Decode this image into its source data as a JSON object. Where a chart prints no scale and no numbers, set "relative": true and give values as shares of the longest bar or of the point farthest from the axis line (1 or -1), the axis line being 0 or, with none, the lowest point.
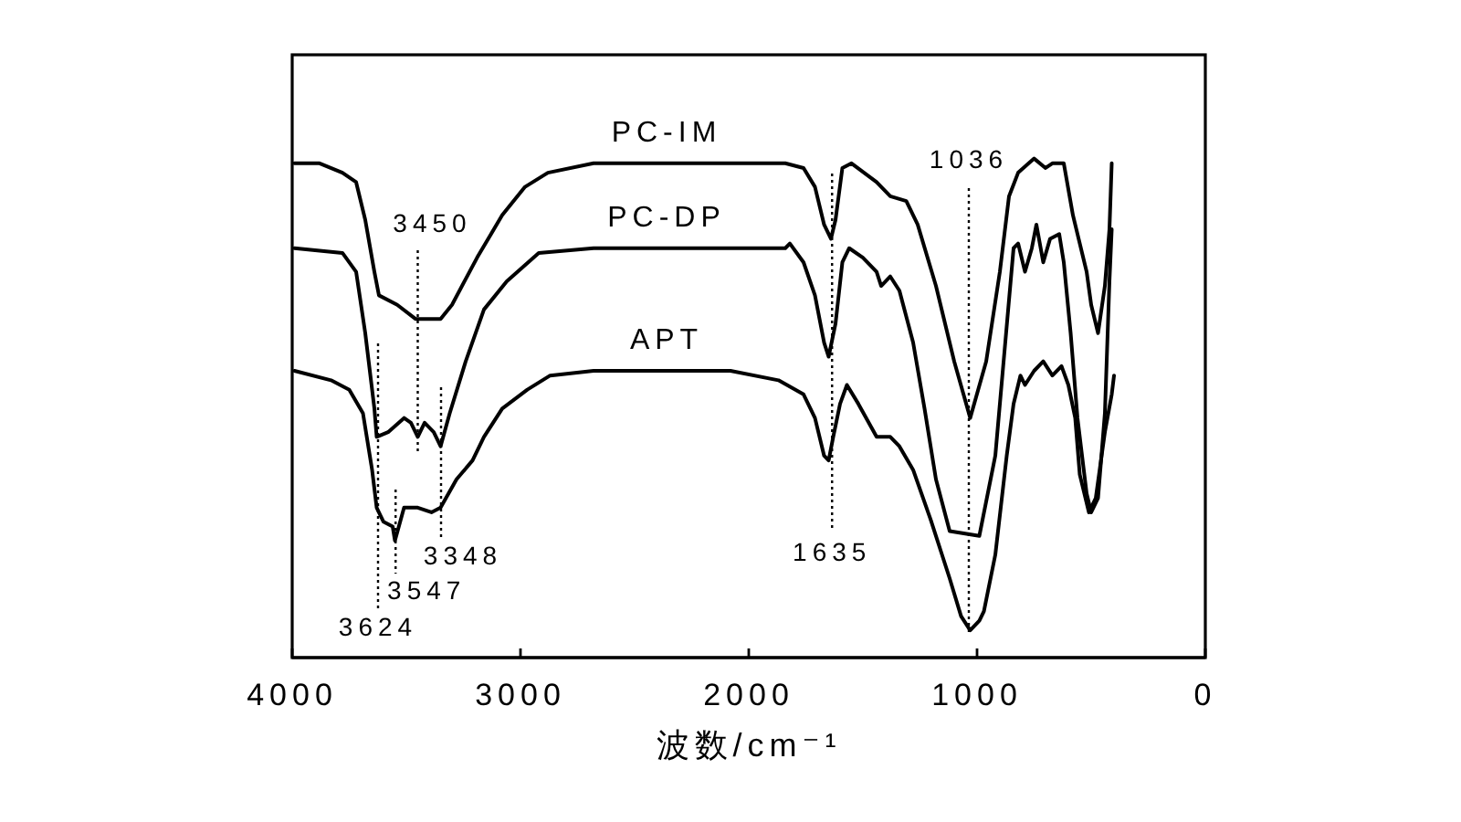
{
  "chart_data": {
    "type": "line",
    "xlabel": "波数/cm⁻¹",
    "xlim": [
      4000,
      0
    ],
    "xticks": [
      4000,
      3000,
      2000,
      1000,
      0
    ],
    "relative": true,
    "series": [
      {
        "name": "PC-IM",
        "color": "#000000",
        "x": [
          3990,
          3880,
          3780,
          3720,
          3680,
          3640,
          3620,
          3540,
          3460,
          3350,
          3300,
          3190,
          3080,
          2980,
          2880,
          2680,
          1840,
          1760,
          1710,
          1670,
          1640,
          1620,
          1590,
          1550,
          1440,
          1380,
          1310,
          1260,
          1180,
          1100,
          1030,
          960,
          900,
          860,
          820,
          750,
          700,
          670,
          620,
          580,
          520,
          500,
          470,
          440,
          420,
          410
        ],
        "values": [
          0.99,
          0.99,
          0.97,
          0.95,
          0.87,
          0.76,
          0.71,
          0.69,
          0.66,
          0.66,
          0.69,
          0.79,
          0.88,
          0.94,
          0.97,
          0.99,
          0.99,
          0.98,
          0.94,
          0.86,
          0.83,
          0.87,
          0.98,
          0.99,
          0.95,
          0.92,
          0.91,
          0.86,
          0.73,
          0.57,
          0.45,
          0.57,
          0.76,
          0.92,
          0.97,
          1.0,
          0.98,
          0.99,
          0.99,
          0.88,
          0.76,
          0.69,
          0.63,
          0.73,
          0.85,
          0.99
        ]
      },
      {
        "name": "PC-DP",
        "color": "#000000",
        "x": [
          3990,
          3780,
          3720,
          3680,
          3640,
          3630,
          3580,
          3510,
          3480,
          3450,
          3420,
          3380,
          3350,
          3310,
          3240,
          3160,
          3060,
          2920,
          2680,
          1840,
          1820,
          1760,
          1710,
          1670,
          1650,
          1620,
          1590,
          1560,
          1500,
          1440,
          1420,
          1380,
          1340,
          1280,
          1230,
          1180,
          1120,
          990,
          920,
          880,
          840,
          820,
          790,
          760,
          740,
          710,
          680,
          640,
          620,
          590,
          560,
          520,
          500,
          470,
          440,
          420,
          410
        ],
        "values": [
          0.81,
          0.8,
          0.76,
          0.63,
          0.47,
          0.41,
          0.42,
          0.45,
          0.44,
          0.41,
          0.44,
          0.42,
          0.39,
          0.46,
          0.57,
          0.68,
          0.74,
          0.8,
          0.81,
          0.81,
          0.82,
          0.78,
          0.71,
          0.61,
          0.58,
          0.65,
          0.78,
          0.81,
          0.79,
          0.76,
          0.73,
          0.75,
          0.72,
          0.61,
          0.47,
          0.32,
          0.21,
          0.2,
          0.37,
          0.59,
          0.81,
          0.82,
          0.76,
          0.81,
          0.86,
          0.78,
          0.83,
          0.84,
          0.78,
          0.63,
          0.45,
          0.29,
          0.25,
          0.28,
          0.46,
          0.74,
          0.85
        ]
      },
      {
        "name": "APT",
        "color": "#000000",
        "x": [
          3990,
          3830,
          3750,
          3690,
          3650,
          3630,
          3600,
          3560,
          3550,
          3510,
          3450,
          3390,
          3350,
          3280,
          3210,
          3160,
          3080,
          2970,
          2870,
          2680,
          2080,
          1870,
          1760,
          1710,
          1670,
          1650,
          1630,
          1600,
          1570,
          1520,
          1440,
          1380,
          1340,
          1280,
          1200,
          1120,
          1070,
          1030,
          990,
          970,
          920,
          870,
          840,
          810,
          790,
          750,
          710,
          670,
          630,
          600,
          570,
          550,
          510,
          480,
          440,
          410,
          400
        ],
        "values": [
          0.55,
          0.53,
          0.51,
          0.46,
          0.34,
          0.26,
          0.23,
          0.22,
          0.19,
          0.26,
          0.26,
          0.25,
          0.26,
          0.32,
          0.36,
          0.41,
          0.47,
          0.51,
          0.54,
          0.55,
          0.55,
          0.53,
          0.5,
          0.45,
          0.37,
          0.36,
          0.41,
          0.48,
          0.52,
          0.48,
          0.41,
          0.41,
          0.39,
          0.34,
          0.23,
          0.11,
          0.03,
          0.0,
          0.02,
          0.04,
          0.16,
          0.37,
          0.48,
          0.54,
          0.52,
          0.55,
          0.57,
          0.54,
          0.56,
          0.52,
          0.45,
          0.33,
          0.25,
          0.28,
          0.42,
          0.5,
          0.54
        ]
      }
    ],
    "ref_lines": [
      {
        "axis": "x",
        "value": 3624,
        "label": "3624",
        "line_style": "dotted",
        "color": "#000000"
      },
      {
        "axis": "x",
        "value": 3547,
        "label": "3547",
        "line_style": "dotted",
        "color": "#000000"
      },
      {
        "axis": "x",
        "value": 3450,
        "label": "3450",
        "line_style": "dotted",
        "color": "#000000"
      },
      {
        "axis": "x",
        "value": 3348,
        "label": "3348",
        "line_style": "dotted",
        "color": "#000000"
      },
      {
        "axis": "x",
        "value": 1635,
        "label": "1635",
        "line_style": "dotted",
        "color": "#000000"
      },
      {
        "axis": "x",
        "value": 1036,
        "label": "1036",
        "line_style": "dotted",
        "color": "#000000"
      }
    ]
  }
}
